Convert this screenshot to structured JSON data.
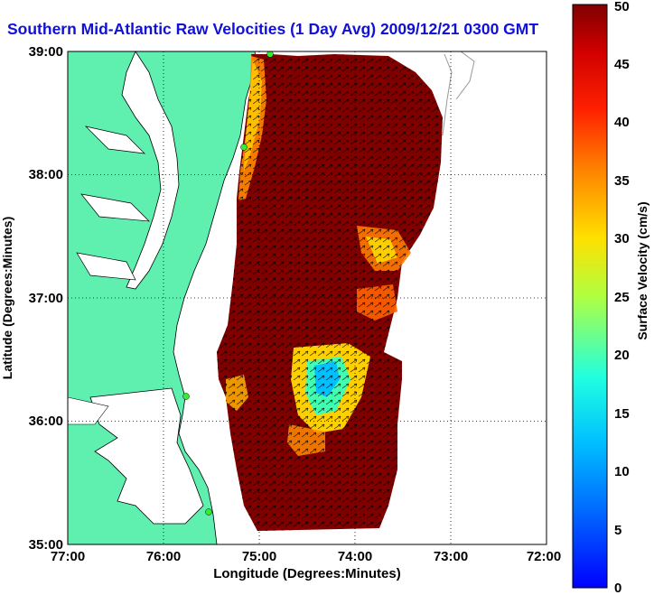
{
  "title": "Southern Mid-Atlantic Raw Velocities (1 Day Avg) 2009/12/21 0300 GMT",
  "map": {
    "xlabel": "Longitude (Degrees:Minutes)",
    "ylabel": "Latitude (Degrees:Minutes)",
    "x_ticks": [
      "77:00",
      "76:00",
      "75:00",
      "74:00",
      "73:00",
      "72:00"
    ],
    "y_ticks": [
      "39:00",
      "38:00",
      "37:00",
      "36:00",
      "35:00"
    ],
    "lon_range": [
      -77,
      -72
    ],
    "lat_range": [
      35,
      39
    ],
    "colors": {
      "land": "#5ff0b0",
      "water": "#ffffff",
      "velocity_dark": "#7a0000",
      "arrows": "#000000",
      "station": "#33ee33"
    }
  },
  "colorbar": {
    "label": "Surface Velocity (cm/s)",
    "ticks": [
      "0",
      "5",
      "10",
      "15",
      "20",
      "25",
      "30",
      "35",
      "40",
      "45",
      "50"
    ],
    "range": [
      0,
      50
    ]
  }
}
